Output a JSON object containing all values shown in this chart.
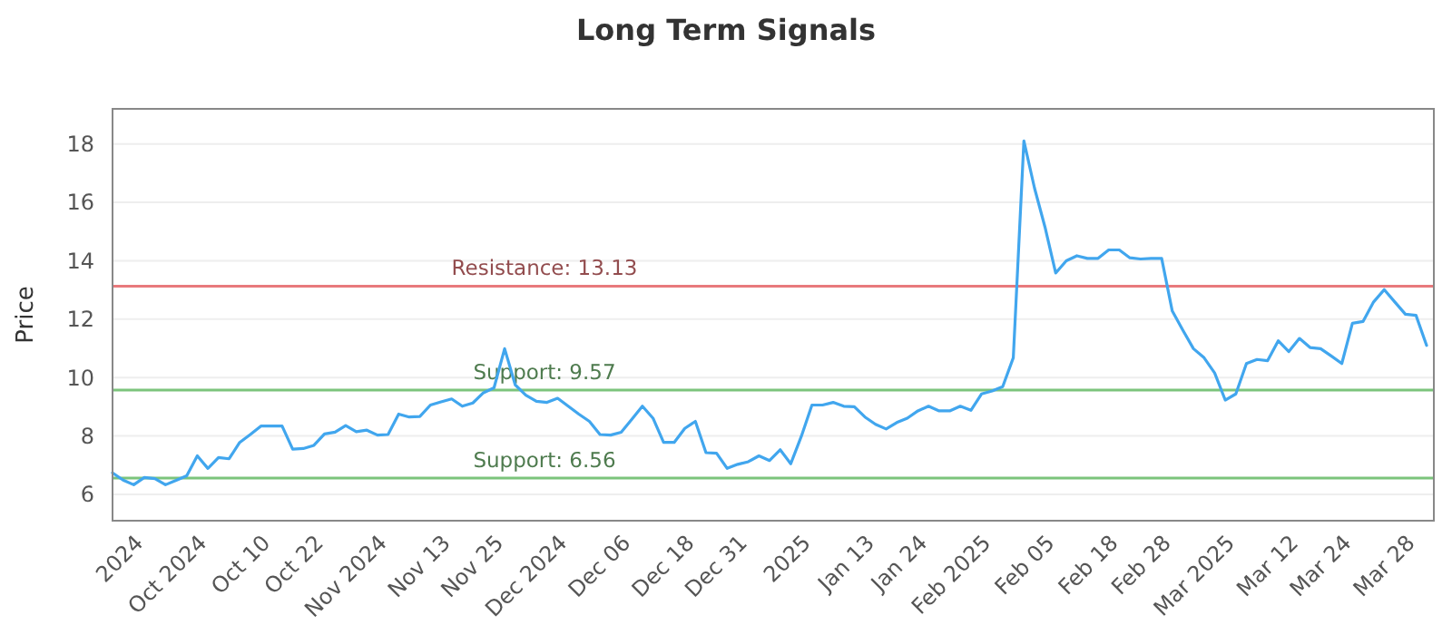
{
  "chart_data": {
    "type": "line",
    "title": "Long Term Signals",
    "ylabel": "Price",
    "categories": [
      null,
      null,
      null,
      "2024",
      null,
      null,
      null,
      null,
      null,
      "Oct 2024",
      null,
      null,
      null,
      null,
      null,
      "Oct 10",
      null,
      null,
      null,
      null,
      "Oct 22",
      null,
      null,
      null,
      null,
      null,
      "Nov 2024",
      null,
      null,
      null,
      null,
      null,
      "Nov 13",
      null,
      null,
      null,
      null,
      "Nov 25",
      null,
      null,
      null,
      null,
      null,
      "Dec 2024",
      null,
      null,
      null,
      null,
      null,
      "Dec 06",
      null,
      null,
      null,
      null,
      null,
      "Dec 18",
      null,
      null,
      null,
      null,
      "Dec 31",
      null,
      null,
      null,
      null,
      null,
      "2025",
      null,
      null,
      null,
      null,
      null,
      "Jan 13",
      null,
      null,
      null,
      null,
      "Jan 24",
      null,
      null,
      null,
      null,
      null,
      "Feb 2025",
      null,
      null,
      null,
      null,
      null,
      "Feb 05",
      null,
      null,
      null,
      null,
      null,
      "Feb 18",
      null,
      null,
      null,
      null,
      "Feb 28",
      null,
      null,
      null,
      null,
      null,
      "Mar 2025",
      null,
      null,
      null,
      null,
      null,
      "Mar 12",
      null,
      null,
      null,
      null,
      "Mar 24",
      null,
      null,
      null,
      null,
      null,
      "Mar 28",
      null
    ],
    "series": [
      {
        "color": "#41a6ee",
        "values": [
          6.74,
          6.49,
          6.33,
          6.58,
          6.54,
          6.33,
          6.48,
          6.64,
          7.32,
          6.89,
          7.26,
          7.22,
          7.78,
          8.05,
          8.34,
          8.34,
          8.34,
          7.55,
          7.57,
          7.68,
          8.07,
          8.13,
          8.36,
          8.15,
          8.2,
          8.03,
          8.05,
          8.75,
          8.65,
          8.67,
          9.06,
          9.17,
          9.27,
          9.02,
          9.13,
          9.48,
          9.65,
          10.99,
          9.75,
          9.4,
          9.19,
          9.15,
          9.29,
          9.02,
          8.75,
          8.5,
          8.05,
          8.03,
          8.13,
          8.57,
          9.02,
          8.61,
          7.78,
          7.78,
          8.26,
          8.5,
          7.43,
          7.41,
          6.89,
          7.03,
          7.12,
          7.32,
          7.16,
          7.53,
          7.05,
          7.99,
          9.06,
          9.06,
          9.15,
          9.02,
          9.0,
          8.65,
          8.4,
          8.24,
          8.46,
          8.61,
          8.86,
          9.02,
          8.86,
          8.86,
          9.02,
          8.88,
          9.44,
          9.54,
          9.69,
          10.68,
          18.1,
          16.49,
          15.14,
          13.58,
          14.0,
          14.17,
          14.08,
          14.08,
          14.37,
          14.37,
          14.1,
          14.06,
          14.08,
          14.08,
          12.28,
          11.62,
          10.99,
          10.68,
          10.16,
          9.23,
          9.44,
          10.48,
          10.62,
          10.58,
          11.26,
          10.89,
          11.34,
          11.03,
          10.99,
          10.74,
          10.48,
          11.86,
          11.92,
          12.59,
          13.01,
          12.59,
          12.17,
          12.13,
          11.1
        ]
      }
    ],
    "ylim": [
      5.1,
      19.2
    ],
    "yticks": [
      6,
      8,
      10,
      12,
      14,
      16,
      18
    ],
    "grid": "y",
    "marker": "none",
    "line_style": "solid",
    "ref_lines": [
      {
        "axis": "y",
        "value": 13.13,
        "label": "Resistance: 13.13",
        "color": "#e8797c"
      },
      {
        "axis": "y",
        "value": 9.57,
        "label": "Support: 9.57",
        "color": "#7cc47c"
      },
      {
        "axis": "y",
        "value": 6.56,
        "label": "Support: 6.56",
        "color": "#7cc47c"
      }
    ]
  }
}
